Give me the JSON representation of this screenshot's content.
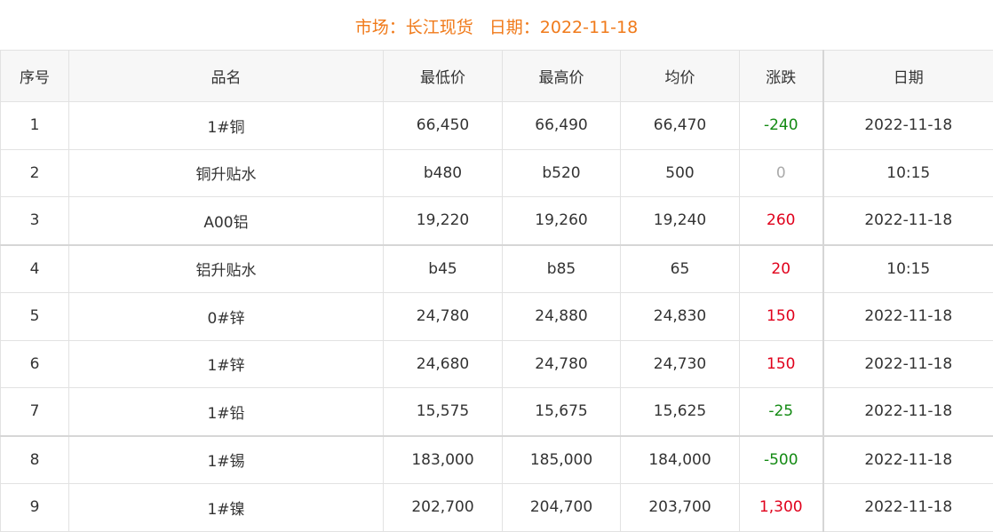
{
  "header": {
    "market": "市场：长江现货",
    "date": "日期：2022-11-18"
  },
  "table": {
    "columns": [
      "序号",
      "品名",
      "最低价",
      "最高价",
      "均价",
      "涨跌",
      "日期"
    ],
    "rows": [
      [
        "1",
        "1#铜",
        "66,450",
        "66,490",
        "66,470",
        "-240",
        "2022-11-18"
      ],
      [
        "2",
        "铜升贴水",
        "b480",
        "b520",
        "500",
        "0",
        "10:15"
      ],
      [
        "3",
        "A00铝",
        "19,220",
        "19,260",
        "19,240",
        "260",
        "2022-11-18"
      ],
      [
        "4",
        "铝升贴水",
        "b45",
        "b85",
        "65",
        "20",
        "10:15"
      ],
      [
        "5",
        "0#锌",
        "24,780",
        "24,880",
        "24,830",
        "150",
        "2022-11-18"
      ],
      [
        "6",
        "1#锌",
        "24,680",
        "24,780",
        "24,730",
        "150",
        "2022-11-18"
      ],
      [
        "7",
        "1#铅",
        "15,575",
        "15,675",
        "15,625",
        "-25",
        "2022-11-18"
      ],
      [
        "8",
        "1#锡",
        "183,000",
        "185,000",
        "184,000",
        "-500",
        "2022-11-18"
      ],
      [
        "9",
        "1#镍",
        "202,700",
        "204,700",
        "203,700",
        "1,300",
        "2022-11-18"
      ]
    ]
  }
}
